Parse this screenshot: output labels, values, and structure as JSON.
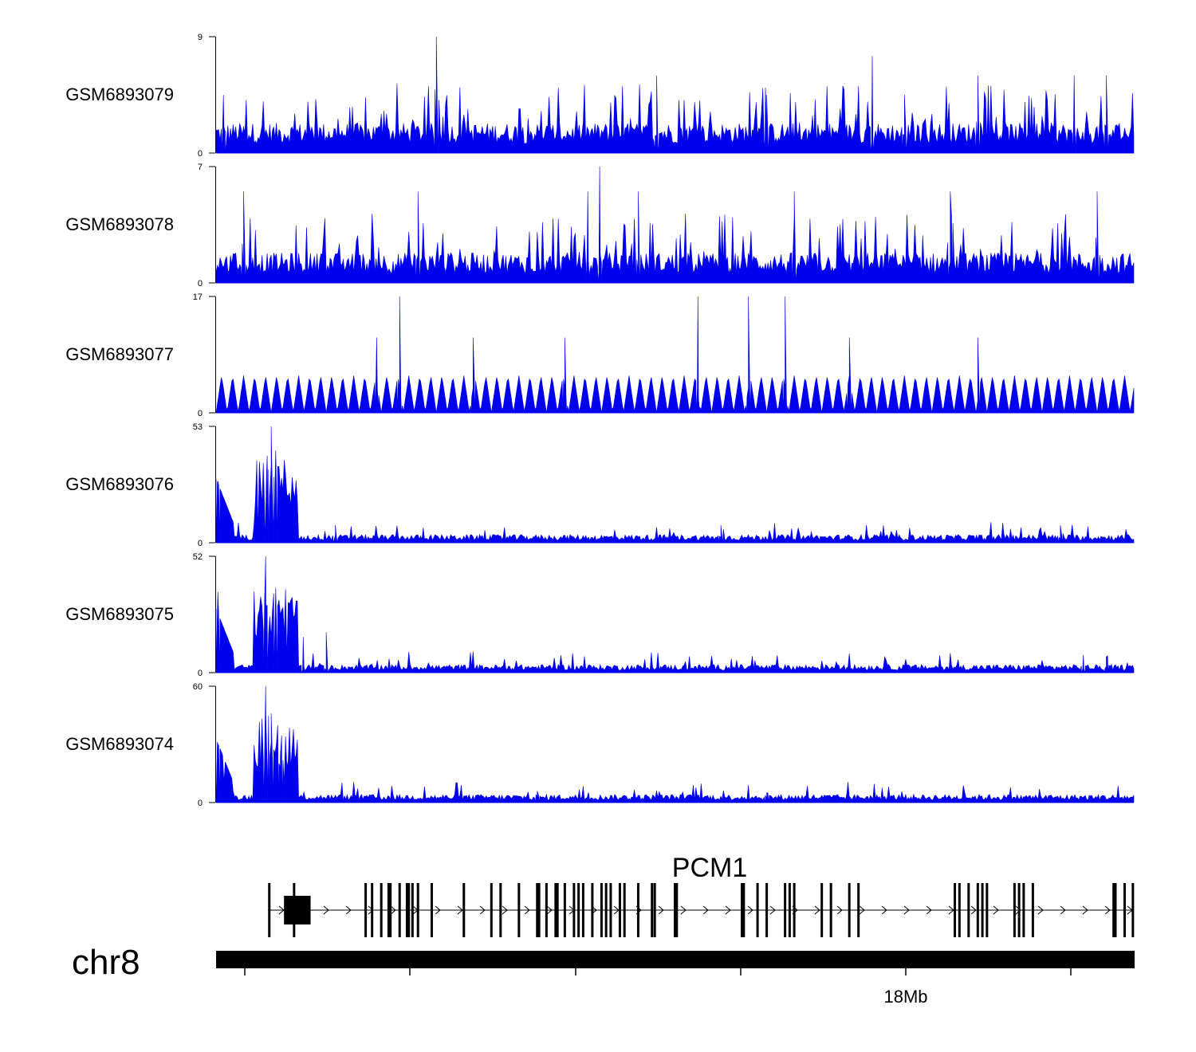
{
  "chart_data": {
    "type": "area",
    "chromosome": "chr8",
    "gene": "PCM1",
    "axis_tick_label": "18Mb",
    "colors": {
      "track_fill": "#0000ee",
      "gene_model": "#000000",
      "axis": "#000000"
    },
    "tracks": [
      {
        "name": "GSM6893079",
        "ymin": 0,
        "ymax": 9,
        "peaks": [
          [
            0.24,
            9
          ],
          [
            0.715,
            7.5
          ],
          [
            0.48,
            6
          ],
          [
            0.935,
            6
          ],
          [
            0.97,
            6
          ],
          [
            0.83,
            6
          ],
          [
            0.008,
            4.5
          ],
          [
            0.6,
            4.5
          ],
          [
            0.75,
            4.5
          ]
        ],
        "profile": "noise"
      },
      {
        "name": "GSM6893078",
        "ymin": 0,
        "ymax": 7,
        "peaks": [
          [
            0.418,
            7
          ],
          [
            0.405,
            5.5
          ],
          [
            0.03,
            5.5
          ],
          [
            0.22,
            5.5
          ],
          [
            0.46,
            5.5
          ],
          [
            0.63,
            5.5
          ],
          [
            0.8,
            5.5
          ],
          [
            0.96,
            5.5
          ]
        ],
        "profile": "noise"
      },
      {
        "name": "GSM6893077",
        "ymin": 0,
        "ymax": 17,
        "peaks": [
          [
            0.2,
            17
          ],
          [
            0.525,
            17
          ],
          [
            0.58,
            17
          ],
          [
            0.62,
            17
          ],
          [
            0.175,
            11
          ],
          [
            0.28,
            11
          ],
          [
            0.38,
            11
          ],
          [
            0.69,
            11
          ],
          [
            0.83,
            11
          ]
        ],
        "profile": "triangles"
      },
      {
        "name": "GSM6893076",
        "ymin": 0,
        "ymax": 53,
        "peaks": [
          [
            0.06,
            53
          ],
          [
            0.065,
            42
          ],
          [
            0.055,
            32
          ],
          [
            0.002,
            28
          ],
          [
            0.13,
            8
          ],
          [
            0.55,
            8
          ],
          [
            0.92,
            8
          ]
        ],
        "profile": "decay"
      },
      {
        "name": "GSM6893075",
        "ymin": 0,
        "ymax": 52,
        "peaks": [
          [
            0.054,
            52
          ],
          [
            0.065,
            38
          ],
          [
            0.002,
            36
          ],
          [
            0.12,
            18
          ],
          [
            0.095,
            16
          ],
          [
            0.945,
            8
          ],
          [
            0.97,
            7
          ]
        ],
        "profile": "decay"
      },
      {
        "name": "GSM6893074",
        "ymin": 0,
        "ymax": 60,
        "peaks": [
          [
            0.054,
            60
          ],
          [
            0.06,
            46
          ],
          [
            0.002,
            30
          ],
          [
            0.07,
            24
          ],
          [
            0.35,
            6
          ],
          [
            0.6,
            5
          ]
        ],
        "profile": "decay"
      }
    ],
    "gene_model": {
      "exons": [
        0.058,
        0.085,
        0.163,
        0.17,
        0.18,
        0.188,
        0.19,
        0.2,
        0.208,
        0.21,
        0.214,
        0.22,
        0.235,
        0.27,
        0.3,
        0.31,
        0.33,
        0.35,
        0.352,
        0.35,
        0.36,
        0.37,
        0.372,
        0.38,
        0.39,
        0.395,
        0.4,
        0.41,
        0.42,
        0.425,
        0.43,
        0.44,
        0.445,
        0.46,
        0.475,
        0.478,
        0.5,
        0.502,
        0.573,
        0.575,
        0.59,
        0.6,
        0.62,
        0.625,
        0.63,
        0.66,
        0.67,
        0.69,
        0.7,
        0.805,
        0.81,
        0.82,
        0.83,
        0.835,
        0.84,
        0.87,
        0.875,
        0.88,
        0.89,
        0.978,
        0.98,
        0.99,
        0.999
      ],
      "utr_block": [
        0.074,
        0.103
      ]
    }
  }
}
